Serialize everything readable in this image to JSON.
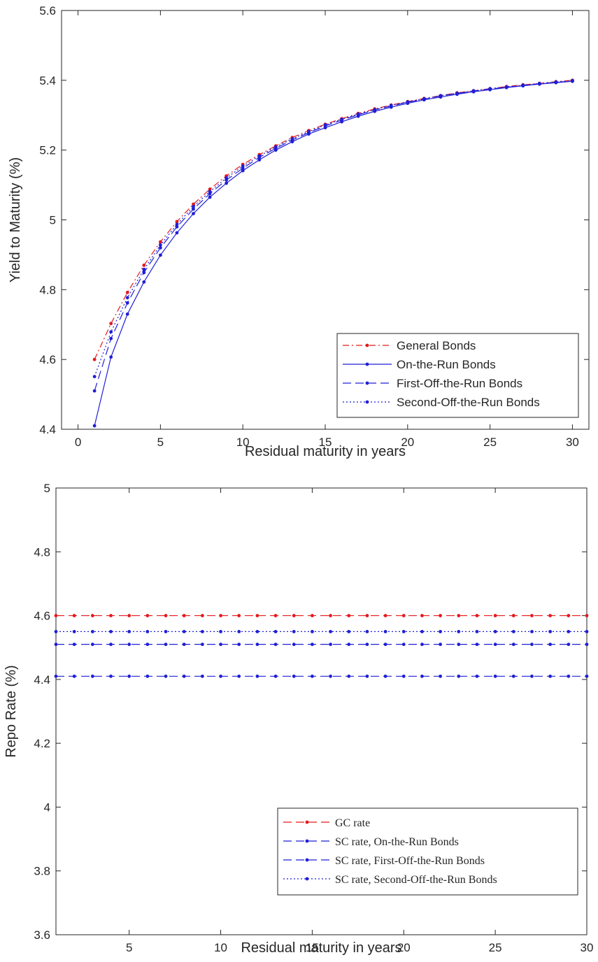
{
  "chart_data": [
    {
      "type": "line",
      "title": "",
      "xlabel": "Residual maturity in years",
      "ylabel": "Yield to Maturity (%)",
      "xlim": [
        -1,
        31
      ],
      "ylim": [
        4.4,
        5.6
      ],
      "xticks": [
        0,
        5,
        10,
        15,
        20,
        25,
        30
      ],
      "yticks": [
        4.4,
        4.6,
        4.8,
        5,
        5.2,
        5.4,
        5.6
      ],
      "xtick_labels": [
        "0",
        "5",
        "10",
        "15",
        "20",
        "25",
        "30"
      ],
      "ytick_labels": [
        "4.4",
        "4.6",
        "4.8",
        "5",
        "5.2",
        "5.4",
        "5.6"
      ],
      "grid": false,
      "legend_position": "bottom-right",
      "legend_font": "sans",
      "x": [
        1,
        2,
        3,
        4,
        5,
        6,
        7,
        8,
        9,
        10,
        11,
        12,
        13,
        14,
        15,
        16,
        17,
        18,
        19,
        20,
        21,
        22,
        23,
        24,
        25,
        26,
        27,
        28,
        29,
        30
      ],
      "series": [
        {
          "name": "General Bonds",
          "color": "#e41a1c",
          "dash": "dashdot",
          "values": [
            4.6,
            4.703,
            4.792,
            4.87,
            4.937,
            4.995,
            5.045,
            5.088,
            5.126,
            5.159,
            5.187,
            5.212,
            5.236,
            5.256,
            5.274,
            5.29,
            5.305,
            5.318,
            5.329,
            5.339,
            5.348,
            5.356,
            5.364,
            5.37,
            5.376,
            5.382,
            5.387,
            5.391,
            5.396,
            5.4
          ]
        },
        {
          "name": "On-the-Run Bonds",
          "color": "#1f1fd6",
          "dash": "solid",
          "values": [
            4.41,
            4.607,
            4.73,
            4.822,
            4.899,
            4.963,
            5.018,
            5.065,
            5.105,
            5.141,
            5.172,
            5.2,
            5.224,
            5.246,
            5.264,
            5.281,
            5.297,
            5.311,
            5.323,
            5.334,
            5.344,
            5.352,
            5.36,
            5.367,
            5.373,
            5.379,
            5.384,
            5.389,
            5.393,
            5.397
          ]
        },
        {
          "name": "First-Off-the-Run Bonds",
          "color": "#1f1fd6",
          "dash": "dashed",
          "values": [
            4.51,
            4.66,
            4.762,
            4.849,
            4.92,
            4.98,
            5.031,
            5.075,
            5.114,
            5.148,
            5.179,
            5.205,
            5.229,
            5.25,
            5.269,
            5.286,
            5.301,
            5.315,
            5.326,
            5.337,
            5.346,
            5.355,
            5.362,
            5.369,
            5.375,
            5.38,
            5.385,
            5.39,
            5.394,
            5.398
          ]
        },
        {
          "name": "Second-Off-the-Run Bonds",
          "color": "#1f1fd6",
          "dash": "dotted",
          "values": [
            4.551,
            4.679,
            4.777,
            4.858,
            4.928,
            4.987,
            5.038,
            5.081,
            5.12,
            5.154,
            5.183,
            5.209,
            5.232,
            5.253,
            5.272,
            5.288,
            5.303,
            5.316,
            5.328,
            5.338,
            5.347,
            5.356,
            5.363,
            5.37,
            5.376,
            5.381,
            5.386,
            5.391,
            5.395,
            5.399
          ]
        }
      ]
    },
    {
      "type": "line",
      "title": "",
      "xlabel": "Residual maturity in years",
      "ylabel": "Repo Rate (%)",
      "xlim": [
        1,
        30
      ],
      "ylim": [
        3.6,
        5
      ],
      "xticks": [
        5,
        10,
        15,
        20,
        25,
        30
      ],
      "yticks": [
        3.6,
        3.8,
        4,
        4.2,
        4.4,
        4.6,
        4.8,
        5
      ],
      "xtick_labels": [
        "5",
        "10",
        "15",
        "20",
        "25",
        "30"
      ],
      "ytick_labels": [
        "3.6",
        "3.8",
        "4",
        "4.2",
        "4.4",
        "4.6",
        "4.8",
        "5"
      ],
      "grid": false,
      "legend_position": "bottom-right",
      "legend_font": "serif",
      "x": [
        1,
        2,
        3,
        4,
        5,
        6,
        7,
        8,
        9,
        10,
        11,
        12,
        13,
        14,
        15,
        16,
        17,
        18,
        19,
        20,
        21,
        22,
        23,
        24,
        25,
        26,
        27,
        28,
        29,
        30
      ],
      "series": [
        {
          "name": "GC rate",
          "color": "#e41a1c",
          "dash": "dashed",
          "values": [
            4.6,
            4.6,
            4.6,
            4.6,
            4.6,
            4.6,
            4.6,
            4.6,
            4.6,
            4.6,
            4.6,
            4.6,
            4.6,
            4.6,
            4.6,
            4.6,
            4.6,
            4.6,
            4.6,
            4.6,
            4.6,
            4.6,
            4.6,
            4.6,
            4.6,
            4.6,
            4.6,
            4.6,
            4.6,
            4.6
          ]
        },
        {
          "name": "SC rate, On-the-Run Bonds",
          "color": "#1f1fd6",
          "dash": "dashed",
          "values": [
            4.41,
            4.41,
            4.41,
            4.41,
            4.41,
            4.41,
            4.41,
            4.41,
            4.41,
            4.41,
            4.41,
            4.41,
            4.41,
            4.41,
            4.41,
            4.41,
            4.41,
            4.41,
            4.41,
            4.41,
            4.41,
            4.41,
            4.41,
            4.41,
            4.41,
            4.41,
            4.41,
            4.41,
            4.41,
            4.41
          ]
        },
        {
          "name": "SC rate, First-Off-the-Run Bonds",
          "color": "#1f1fd6",
          "dash": "dashed",
          "values": [
            4.51,
            4.51,
            4.51,
            4.51,
            4.51,
            4.51,
            4.51,
            4.51,
            4.51,
            4.51,
            4.51,
            4.51,
            4.51,
            4.51,
            4.51,
            4.51,
            4.51,
            4.51,
            4.51,
            4.51,
            4.51,
            4.51,
            4.51,
            4.51,
            4.51,
            4.51,
            4.51,
            4.51,
            4.51,
            4.51
          ]
        },
        {
          "name": "SC rate, Second-Off-the-Run Bonds",
          "color": "#1f1fd6",
          "dash": "dotted",
          "values": [
            4.55,
            4.55,
            4.55,
            4.55,
            4.55,
            4.55,
            4.55,
            4.55,
            4.55,
            4.55,
            4.55,
            4.55,
            4.55,
            4.55,
            4.55,
            4.55,
            4.55,
            4.55,
            4.55,
            4.55,
            4.55,
            4.55,
            4.55,
            4.55,
            4.55,
            4.55,
            4.55,
            4.55,
            4.55,
            4.55
          ]
        }
      ]
    }
  ]
}
